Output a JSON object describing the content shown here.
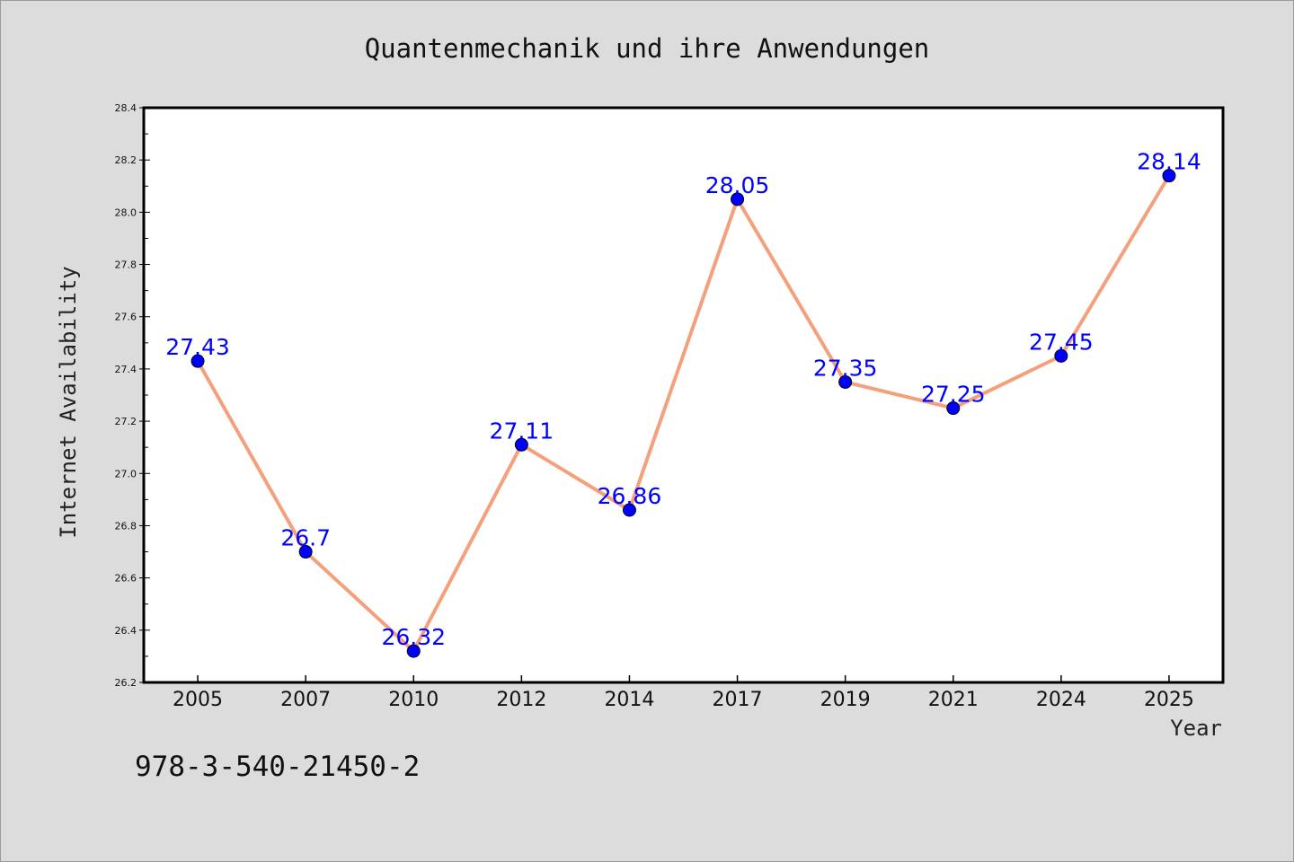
{
  "chart_data": {
    "type": "line",
    "title": "Quantenmechanik und ihre Anwendungen",
    "xlabel": "Year",
    "ylabel": "Internet Availability",
    "categories": [
      "2005",
      "2007",
      "2010",
      "2012",
      "2014",
      "2017",
      "2019",
      "2021",
      "2024",
      "2025"
    ],
    "values": [
      27.43,
      26.7,
      26.32,
      27.11,
      26.86,
      28.05,
      27.35,
      27.25,
      27.45,
      28.14
    ],
    "data_labels": [
      "27.43",
      "26.7",
      "26.32",
      "27.11",
      "26.86",
      "28.05",
      "27.35",
      "27.25",
      "27.45",
      "28.14"
    ],
    "ylim": [
      26.2,
      28.4
    ],
    "yticks": [
      "26.2",
      "26.4",
      "26.6",
      "26.8",
      "27.0",
      "27.2",
      "27.4",
      "27.6",
      "27.8",
      "28.0",
      "28.2",
      "28.4"
    ],
    "grid": false,
    "line_color": "#f4a07c",
    "marker_color": "#0000ff",
    "label_color": "#0000ff"
  },
  "footer_text": "978-3-540-21450-2"
}
